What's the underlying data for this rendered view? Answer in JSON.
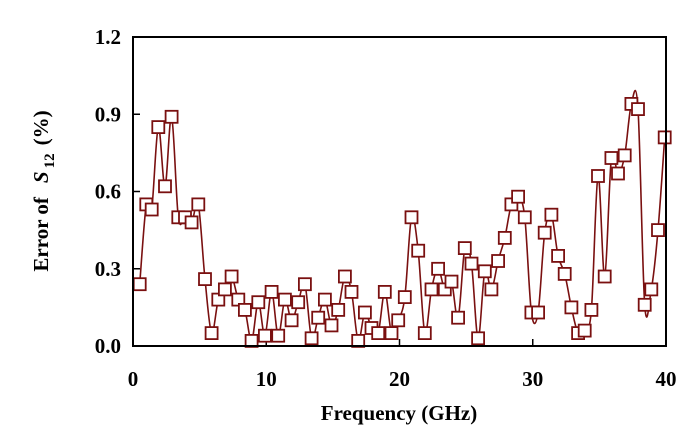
{
  "chart_data": {
    "type": "line",
    "xlabel": "Frequency (GHz)",
    "ylabel_prefix": "Error of",
    "ylabel_symbol": "S",
    "ylabel_subscript": "12",
    "ylabel_suffix": "(%)",
    "xlim": [
      0,
      40
    ],
    "ylim": [
      0,
      1.2
    ],
    "x_ticks": [
      "0",
      "10",
      "20",
      "30",
      "40"
    ],
    "y_ticks": [
      "0.0",
      "0.3",
      "0.6",
      "0.9",
      "1.2"
    ],
    "grid": false,
    "legend": false,
    "series_color": "#7a1010",
    "marker": "open-square",
    "series": [
      {
        "x": [
          0.5,
          1.0,
          1.4,
          1.9,
          2.4,
          2.9,
          3.4,
          3.9,
          4.4,
          4.9,
          5.4,
          5.9,
          6.4,
          6.9,
          7.4,
          7.9,
          8.4,
          8.9,
          9.4,
          9.9,
          10.4,
          10.9,
          11.4,
          11.9,
          12.4,
          12.9,
          13.4,
          13.9,
          14.4,
          14.9,
          15.4,
          15.9,
          16.4,
          16.9,
          17.4,
          17.9,
          18.4,
          18.9,
          19.4,
          19.9,
          20.4,
          20.9,
          21.4,
          21.9,
          22.4,
          22.9,
          23.4,
          23.9,
          24.4,
          24.9,
          25.4,
          25.9,
          26.4,
          26.9,
          27.4,
          27.9,
          28.4,
          28.9,
          29.4,
          29.9,
          30.4,
          30.9,
          31.4,
          31.9,
          32.4,
          32.9,
          33.4,
          33.9,
          34.4,
          34.9,
          35.4,
          35.9,
          36.4,
          36.9,
          37.4,
          37.9,
          38.4,
          38.9,
          39.4,
          39.9
        ],
        "y": [
          0.24,
          0.55,
          0.53,
          0.85,
          0.62,
          0.89,
          0.5,
          0.5,
          0.48,
          0.55,
          0.26,
          0.05,
          0.18,
          0.22,
          0.27,
          0.18,
          0.14,
          0.02,
          0.17,
          0.04,
          0.21,
          0.04,
          0.18,
          0.1,
          0.17,
          0.24,
          0.03,
          0.11,
          0.18,
          0.08,
          0.14,
          0.27,
          0.21,
          0.02,
          0.13,
          0.07,
          0.05,
          0.21,
          0.05,
          0.1,
          0.19,
          0.5,
          0.37,
          0.05,
          0.22,
          0.3,
          0.22,
          0.25,
          0.11,
          0.38,
          0.32,
          0.03,
          0.29,
          0.22,
          0.33,
          0.42,
          0.55,
          0.58,
          0.5,
          0.13,
          0.13,
          0.44,
          0.51,
          0.35,
          0.28,
          0.15,
          0.05,
          0.06,
          0.14,
          0.66,
          0.27,
          0.73,
          0.67,
          0.74,
          0.94,
          0.92,
          0.16,
          0.22,
          0.45,
          0.81
        ]
      }
    ]
  }
}
